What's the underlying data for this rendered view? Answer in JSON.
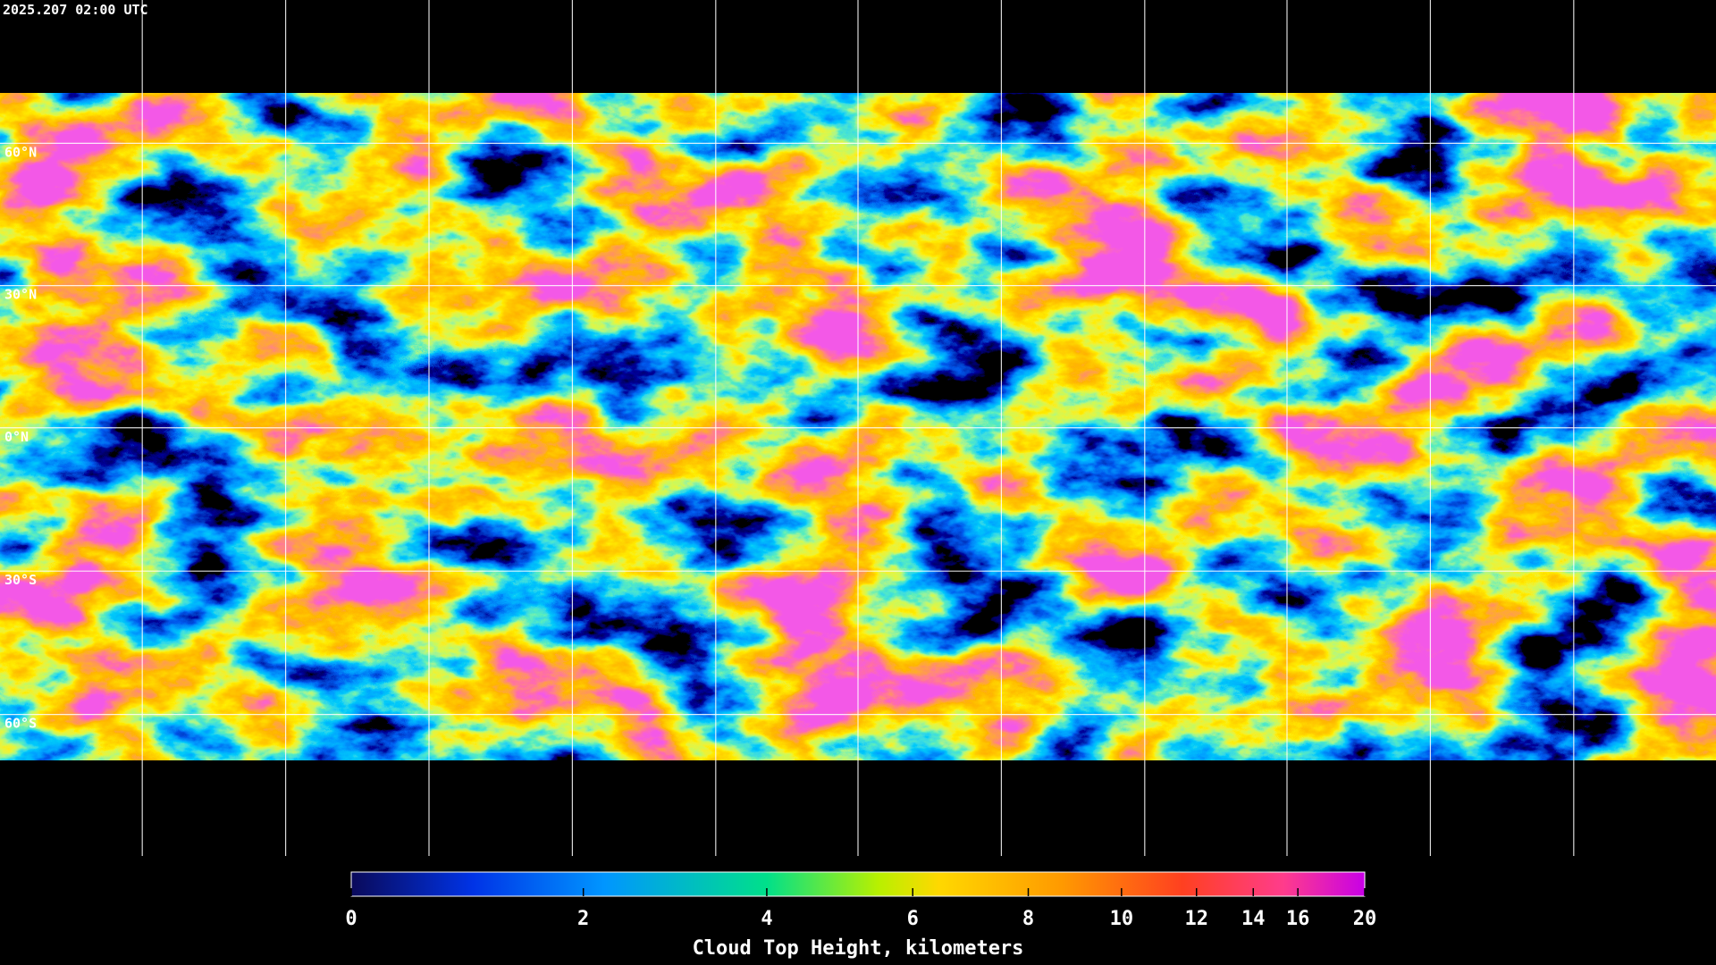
{
  "header": {
    "title": "2025.207 02:00 UTC"
  },
  "map": {
    "latitude_labels": [
      "60°N",
      "30°N",
      "0°N",
      "30°S",
      "60°S"
    ]
  },
  "colorbar": {
    "label": "Cloud Top Height, kilometers",
    "lim": [
      0,
      20
    ],
    "ticks": [
      0,
      2,
      4,
      6,
      8,
      10,
      12,
      14,
      16,
      20
    ]
  }
}
